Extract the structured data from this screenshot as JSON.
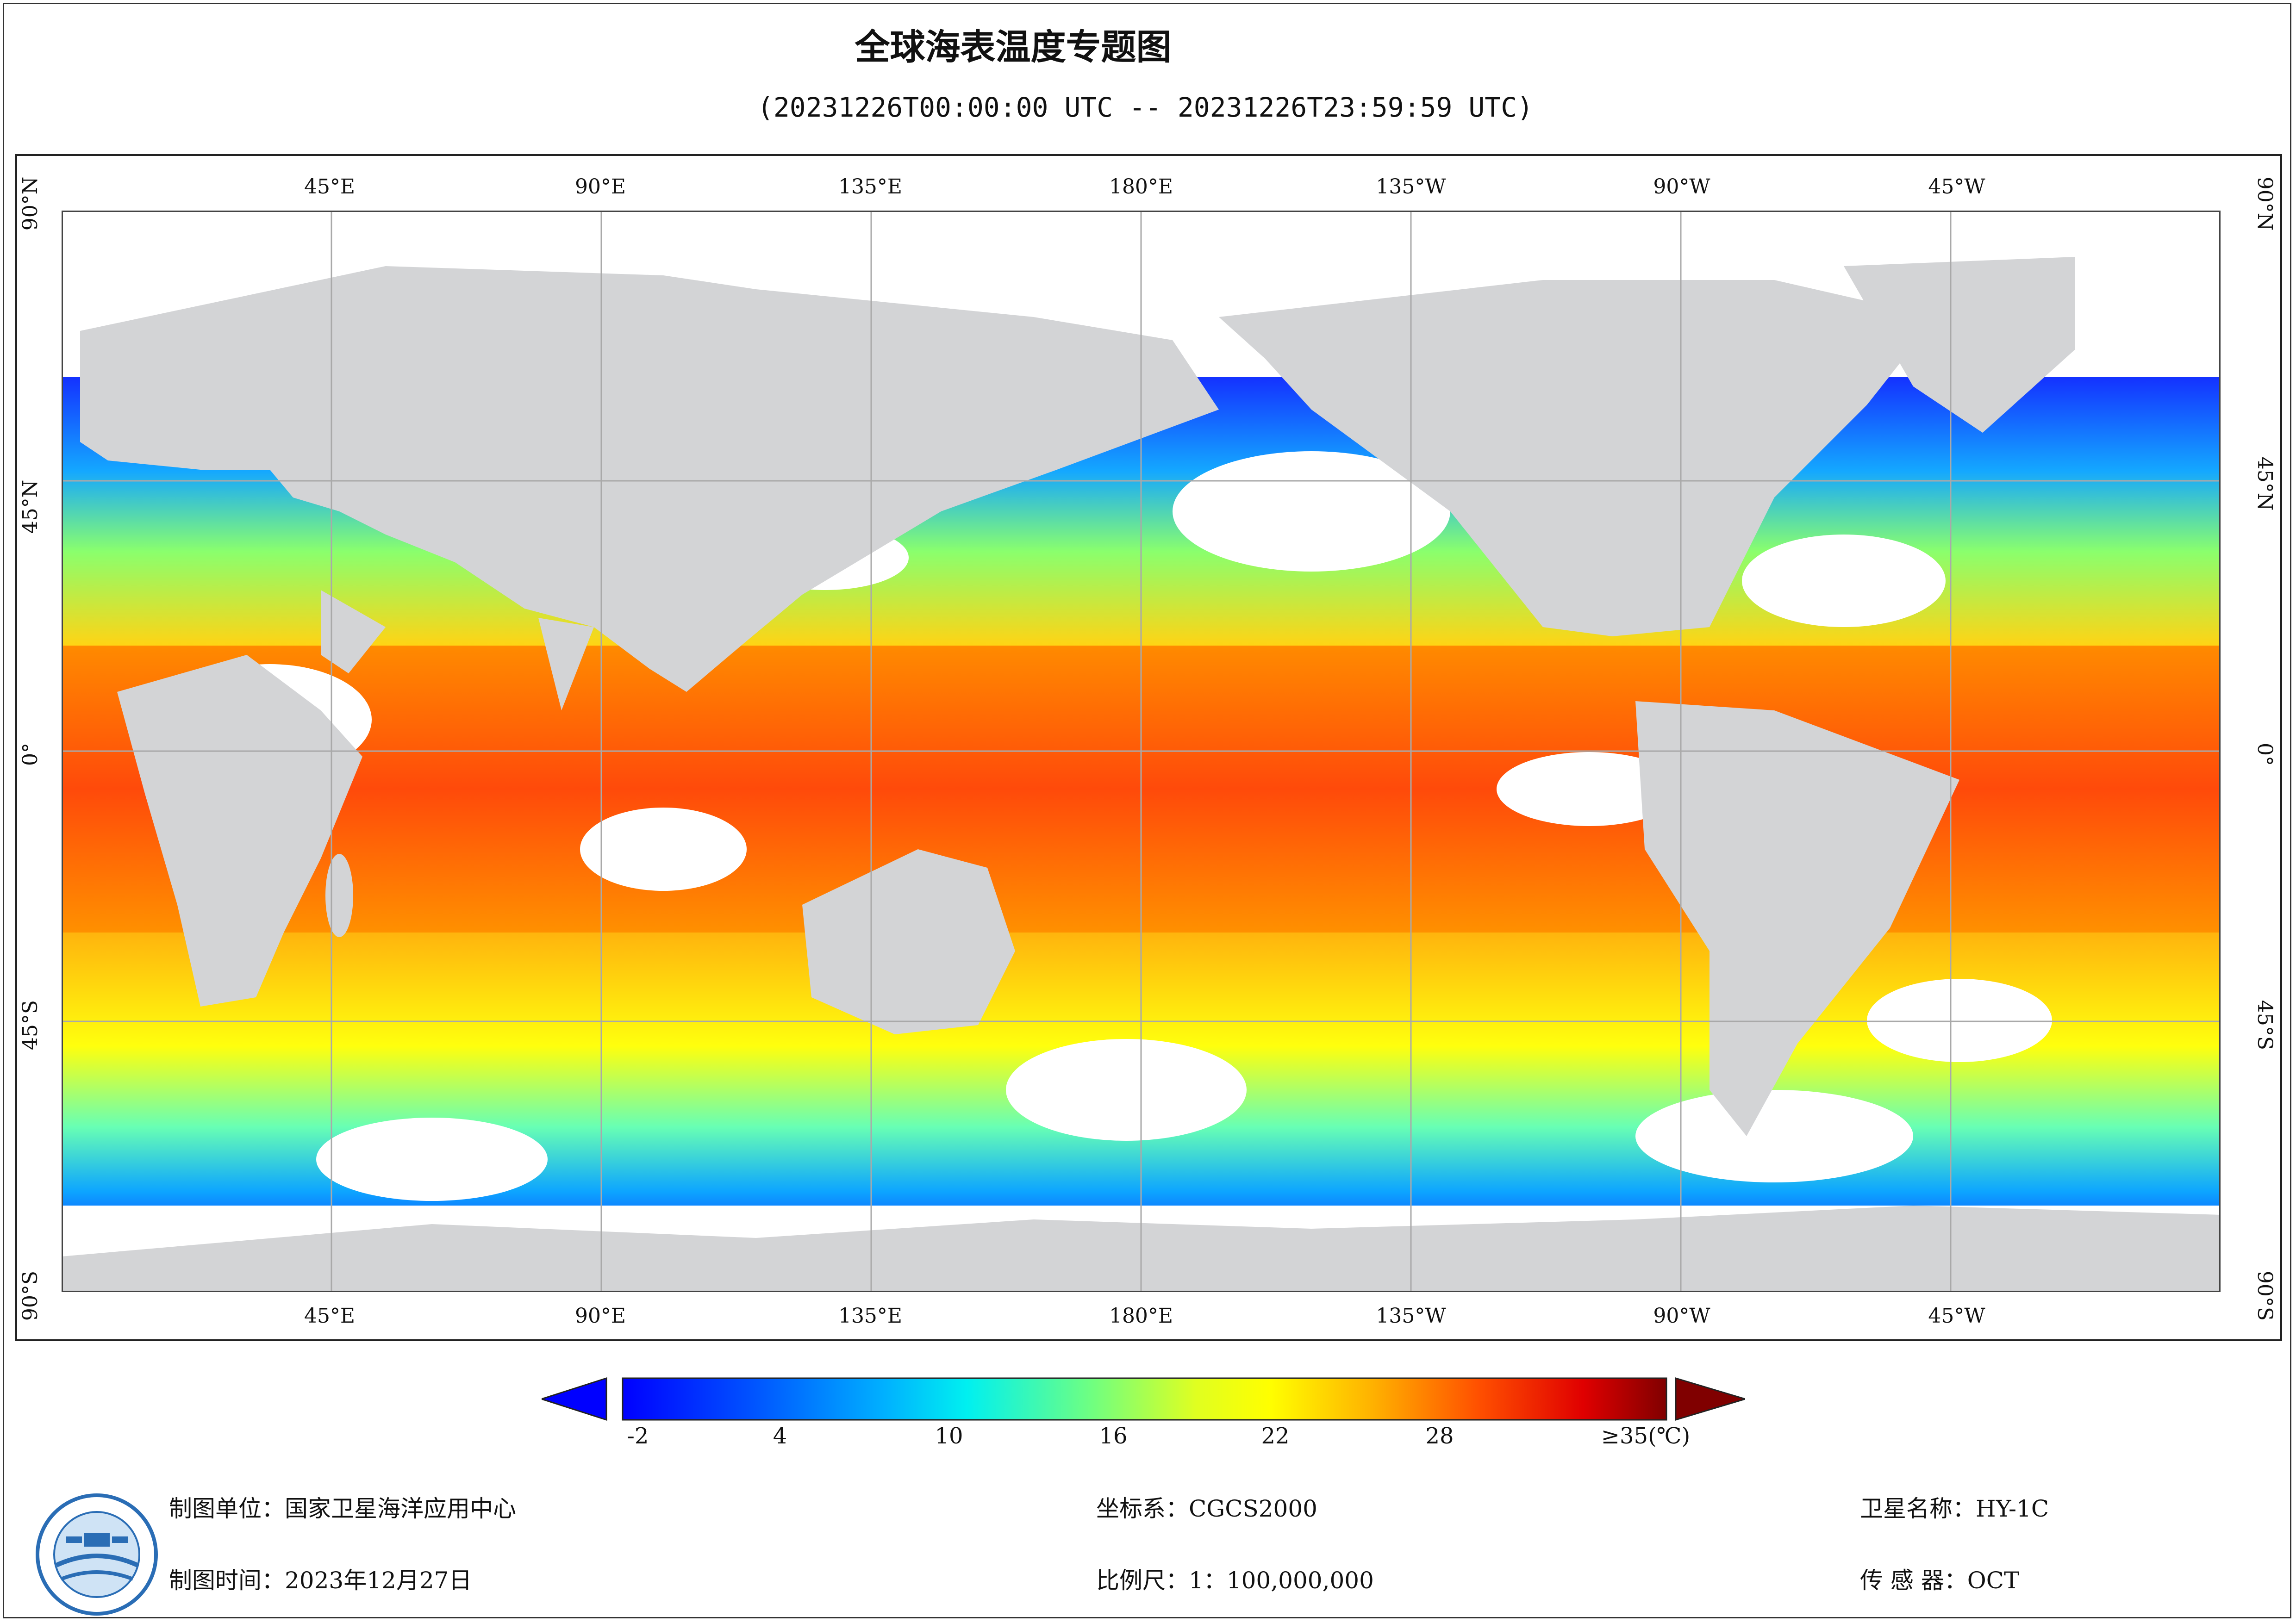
{
  "title": "全球海表温度专题图",
  "subtitle": "(20231226T00:00:00 UTC -- 20231226T23:59:59 UTC)",
  "map": {
    "lon_ticks": [
      "45°E",
      "90°E",
      "135°E",
      "180°E",
      "135°W",
      "90°W",
      "45°W"
    ],
    "lat_ticks": [
      "90°N",
      "45°N",
      "0°",
      "45°S",
      "90°S"
    ],
    "colors": {
      "land": "#d3d4d6",
      "cloud": "#ffffff",
      "graticule": "#a9a9a9"
    }
  },
  "legend": {
    "labels": [
      "-2",
      "4",
      "10",
      "16",
      "22",
      "28",
      "≥35(℃)"
    ],
    "range": [
      -2,
      35
    ],
    "unit": "℃",
    "colors": [
      "#0000ff",
      "#0040ff",
      "#0090ff",
      "#00e0ff",
      "#50ffb0",
      "#b0ff50",
      "#ffff00",
      "#ffc000",
      "#ff8000",
      "#ff3000",
      "#e00000",
      "#800000"
    ]
  },
  "info": {
    "producer": "制图单位：国家卫星海洋应用中心",
    "date": "制图时间：2023年12月27日",
    "crs": "坐标系：CGCS2000",
    "scale": "比例尺：1：100,000,000",
    "satellite": "卫星名称：HY-1C",
    "sensor": "传 感 器：OCT"
  }
}
